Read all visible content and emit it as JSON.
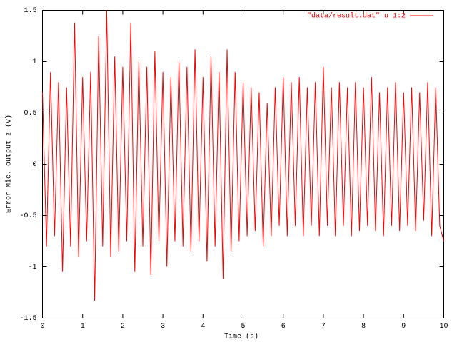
{
  "chart_data": {
    "type": "line",
    "x_label": "Time (s)",
    "y_label": "Error Mic. output z (V)",
    "x": [
      0,
      0.1,
      0.2,
      0.3,
      0.4,
      0.5,
      0.6,
      0.7,
      0.8,
      0.9,
      1,
      1.1,
      1.2,
      1.3,
      1.4,
      1.5,
      1.6,
      1.7,
      1.8,
      1.9,
      2,
      2.1,
      2.2,
      2.3,
      2.4,
      2.5,
      2.6,
      2.7,
      2.8,
      2.9,
      3,
      3.1,
      3.2,
      3.3,
      3.4,
      3.5,
      3.6,
      3.7,
      3.8,
      3.9,
      4,
      4.1,
      4.2,
      4.3,
      4.4,
      4.5,
      4.6,
      4.7,
      4.8,
      4.9,
      5,
      5.1,
      5.2,
      5.3,
      5.4,
      5.5,
      5.6,
      5.7,
      5.8,
      5.9,
      6,
      6.1,
      6.2,
      6.3,
      6.4,
      6.5,
      6.6,
      6.7,
      6.8,
      6.9,
      7,
      7.1,
      7.2,
      7.3,
      7.4,
      7.5,
      7.6,
      7.7,
      7.8,
      7.9,
      8,
      8.1,
      8.2,
      8.3,
      8.4,
      8.5,
      8.6,
      8.7,
      8.8,
      8.9,
      9,
      9.1,
      9.2,
      9.3,
      9.4,
      9.5,
      9.6,
      9.7,
      9.8,
      9.9,
      10
    ],
    "series": [
      {
        "name": "\"data/result.dat\" u 1:2",
        "color": "#ff0000",
        "values": [
          0.7,
          -0.8,
          0.9,
          -0.7,
          0.8,
          -1.05,
          0.75,
          -0.8,
          1.38,
          -0.9,
          0.85,
          -0.75,
          0.9,
          -1.33,
          1.25,
          -0.8,
          1.5,
          -0.9,
          1.05,
          -0.85,
          0.95,
          -0.75,
          1.38,
          -1.05,
          1.0,
          -0.8,
          0.95,
          -1.08,
          1.1,
          -0.75,
          0.9,
          -1.0,
          0.85,
          -0.75,
          1.0,
          -0.8,
          0.95,
          -0.85,
          1.12,
          -0.75,
          0.85,
          -0.95,
          1.05,
          -0.8,
          0.9,
          -1.12,
          1.12,
          -0.85,
          0.9,
          -0.75,
          0.8,
          -0.7,
          0.75,
          -0.65,
          0.7,
          -0.8,
          0.6,
          -0.7,
          0.75,
          -0.6,
          0.85,
          -0.7,
          0.8,
          -0.6,
          0.85,
          -0.7,
          0.75,
          -0.6,
          0.8,
          -0.7,
          0.95,
          -0.6,
          0.75,
          -0.7,
          0.8,
          -0.6,
          0.75,
          -0.7,
          0.8,
          -0.65,
          0.75,
          -0.6,
          0.85,
          -0.65,
          0.7,
          -0.7,
          0.75,
          -0.6,
          0.8,
          -0.65,
          0.7,
          -0.6,
          0.75,
          -0.65,
          0.7,
          -0.55,
          0.8,
          -0.7,
          0.75,
          -0.6,
          -0.75
        ]
      }
    ],
    "xlim": [
      0,
      10
    ],
    "xticks": [
      0,
      1,
      2,
      3,
      4,
      5,
      6,
      7,
      8,
      9,
      10
    ],
    "ylim": [
      -1.5,
      1.5
    ],
    "yticks": [
      -1.5,
      -1,
      -0.5,
      0,
      0.5,
      1,
      1.5
    ],
    "grid": false,
    "legend": "top-right"
  }
}
